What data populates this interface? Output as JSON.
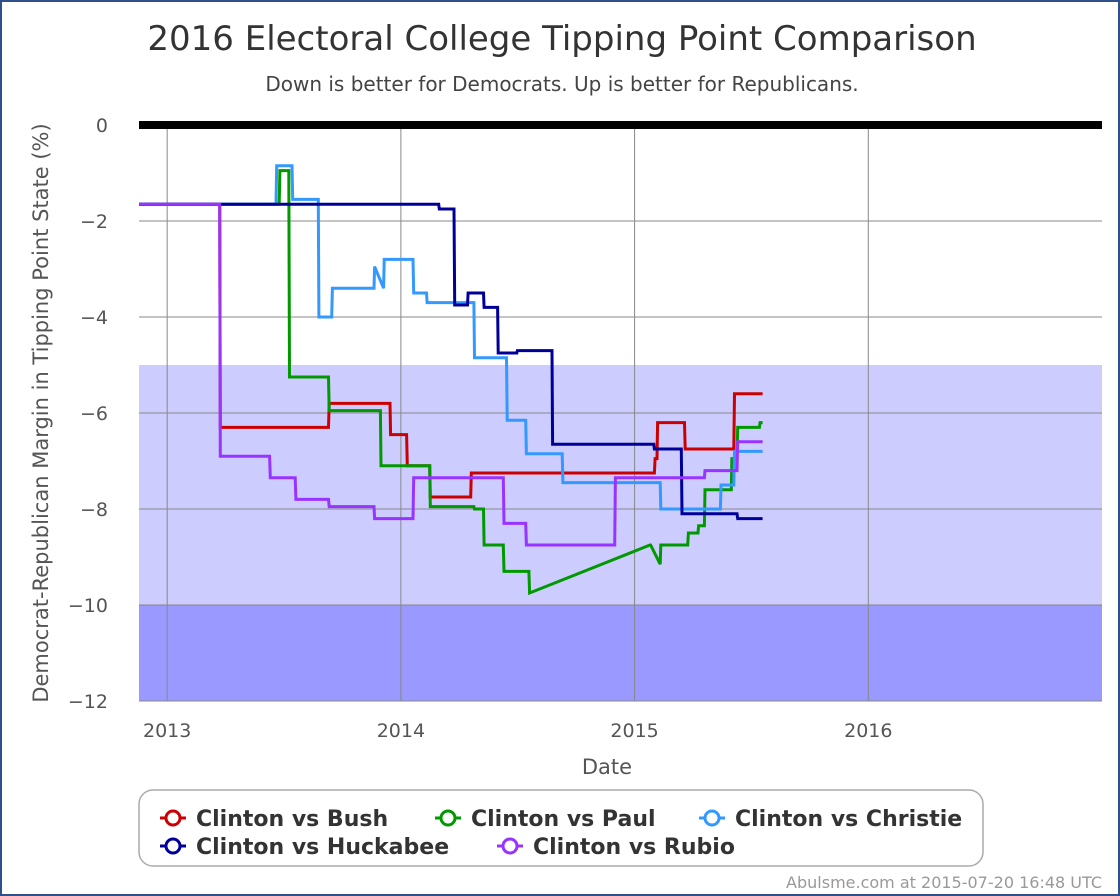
{
  "chart_data": {
    "type": "line",
    "title": "2016 Electoral College Tipping Point Comparison",
    "subtitle": "Down is better for Democrats. Up is better for Republicans.",
    "xlabel": "Date",
    "ylabel": "Democrat-Republican Margin in Tipping Point State (%)",
    "xlim": [
      "2012-11-18",
      "2016-12-31"
    ],
    "ylim": [
      -12,
      0
    ],
    "x_ticks": [
      "2013",
      "2014",
      "2015",
      "2016"
    ],
    "y_ticks": [
      "0",
      "−2",
      "−4",
      "−6",
      "−8",
      "−10",
      "−12"
    ],
    "grid": true,
    "bands": [
      {
        "from": -10,
        "to": -5,
        "color": "#ccccff"
      },
      {
        "from": -12,
        "to": -10,
        "color": "#9999ff"
      }
    ],
    "reference_line": {
      "y": 0,
      "color": "#000000"
    },
    "legend_position": "bottom",
    "series": [
      {
        "name": "Clinton vs Bush",
        "color": "#cc0000",
        "x": [
          "2012-11-18",
          "2013-03-24",
          "2013-03-25",
          "2013-09-10",
          "2013-09-11",
          "2013-12-15",
          "2013-12-16",
          "2014-01-10",
          "2014-01-11",
          "2014-02-15",
          "2014-02-16",
          "2014-04-20",
          "2014-04-21",
          "2014-05-01",
          "2014-05-02",
          "2015-02-01",
          "2015-02-02",
          "2015-02-05",
          "2015-02-06",
          "2015-03-20",
          "2015-03-21",
          "2015-06-05",
          "2015-06-06",
          "2015-07-20"
        ],
        "y": [
          -1.65,
          -1.65,
          -6.3,
          -6.3,
          -5.8,
          -5.8,
          -6.45,
          -6.45,
          -7.1,
          -7.1,
          -7.75,
          -7.75,
          -7.25,
          -7.25,
          -7.25,
          -7.25,
          -6.95,
          -6.95,
          -6.2,
          -6.2,
          -6.75,
          -6.75,
          -5.6,
          -5.6
        ]
      },
      {
        "name": "Clinton vs Paul",
        "color": "#009900",
        "x": [
          "2012-11-18",
          "2013-03-24",
          "2013-03-25",
          "2013-06-25",
          "2013-06-26",
          "2013-07-10",
          "2013-07-11",
          "2013-09-10",
          "2013-09-11",
          "2013-11-30",
          "2013-12-01",
          "2014-02-15",
          "2014-02-16",
          "2014-04-25",
          "2014-04-26",
          "2014-05-10",
          "2014-05-11",
          "2014-06-10",
          "2014-06-11",
          "2014-07-20",
          "2014-07-21",
          "2015-01-25",
          "2015-01-26",
          "2015-02-10",
          "2015-02-11",
          "2015-03-25",
          "2015-03-26",
          "2015-04-10",
          "2015-04-11",
          "2015-04-20",
          "2015-04-21",
          "2015-06-01",
          "2015-06-02",
          "2015-06-10",
          "2015-06-11",
          "2015-07-15",
          "2015-07-16",
          "2015-07-20"
        ],
        "y": [
          -1.65,
          -1.65,
          -1.65,
          -1.65,
          -0.95,
          -0.95,
          -5.25,
          -5.25,
          -5.95,
          -5.95,
          -7.1,
          -7.1,
          -7.95,
          -7.95,
          -8.0,
          -8.0,
          -8.75,
          -8.75,
          -9.3,
          -9.3,
          -9.75,
          -8.75,
          -8.75,
          -9.15,
          -8.75,
          -8.75,
          -8.5,
          -8.5,
          -8.35,
          -8.35,
          -7.6,
          -7.6,
          -6.95,
          -6.95,
          -6.3,
          -6.3,
          -6.2,
          -6.2
        ]
      },
      {
        "name": "Clinton vs Christie",
        "color": "#3399ff",
        "x": [
          "2012-11-18",
          "2013-06-20",
          "2013-06-21",
          "2013-07-15",
          "2013-07-16",
          "2013-08-25",
          "2013-08-26",
          "2013-09-15",
          "2013-09-16",
          "2013-11-20",
          "2013-11-21",
          "2013-12-05",
          "2013-12-06",
          "2014-01-20",
          "2014-01-21",
          "2014-02-10",
          "2014-02-11",
          "2014-04-25",
          "2014-04-26",
          "2014-06-15",
          "2014-06-16",
          "2014-07-15",
          "2014-07-16",
          "2014-09-10",
          "2014-09-11",
          "2015-02-10",
          "2015-02-11",
          "2015-05-15",
          "2015-05-16",
          "2015-06-05",
          "2015-06-06",
          "2015-07-20"
        ],
        "y": [
          -1.65,
          -1.65,
          -0.85,
          -0.85,
          -1.55,
          -1.55,
          -4.0,
          -4.0,
          -3.4,
          -3.4,
          -2.95,
          -3.4,
          -2.8,
          -2.8,
          -3.5,
          -3.5,
          -3.7,
          -3.7,
          -4.85,
          -4.85,
          -6.15,
          -6.15,
          -6.85,
          -6.85,
          -7.45,
          -7.45,
          -8.0,
          -8.0,
          -7.5,
          -7.5,
          -6.8,
          -6.8
        ]
      },
      {
        "name": "Clinton vs Huckabee",
        "color": "#000099",
        "x": [
          "2012-11-18",
          "2014-03-01",
          "2014-03-02",
          "2014-03-25",
          "2014-03-26",
          "2014-04-15",
          "2014-04-16",
          "2014-05-10",
          "2014-05-11",
          "2014-06-01",
          "2014-06-02",
          "2014-07-01",
          "2014-07-02",
          "2014-08-25",
          "2014-08-26",
          "2015-01-31",
          "2015-02-01",
          "2015-03-15",
          "2015-03-16",
          "2015-06-10",
          "2015-06-11",
          "2015-07-20"
        ],
        "y": [
          -1.65,
          -1.65,
          -1.75,
          -1.75,
          -3.75,
          -3.75,
          -3.5,
          -3.5,
          -3.8,
          -3.8,
          -4.75,
          -4.75,
          -4.7,
          -4.7,
          -6.65,
          -6.65,
          -6.75,
          -6.75,
          -8.1,
          -8.1,
          -8.2,
          -8.2
        ]
      },
      {
        "name": "Clinton vs Rubio",
        "color": "#9933ff",
        "x": [
          "2012-11-18",
          "2013-03-24",
          "2013-03-25",
          "2013-06-10",
          "2013-06-11",
          "2013-07-20",
          "2013-07-21",
          "2013-09-10",
          "2013-09-11",
          "2013-11-20",
          "2013-11-21",
          "2014-01-20",
          "2014-01-21",
          "2014-06-10",
          "2014-06-11",
          "2014-07-15",
          "2014-07-16",
          "2014-12-01",
          "2014-12-02",
          "2015-04-20",
          "2015-04-21",
          "2015-06-10",
          "2015-06-11",
          "2015-07-20"
        ],
        "y": [
          -1.65,
          -1.65,
          -6.9,
          -6.9,
          -7.35,
          -7.35,
          -7.8,
          -7.8,
          -7.95,
          -7.95,
          -8.2,
          -8.2,
          -7.35,
          -7.35,
          -8.3,
          -8.3,
          -8.75,
          -8.75,
          -7.35,
          -7.35,
          -7.2,
          -7.2,
          -6.6,
          -6.6
        ]
      }
    ]
  },
  "credit": "Abulsme.com at 2015-07-20 16:48 UTC"
}
